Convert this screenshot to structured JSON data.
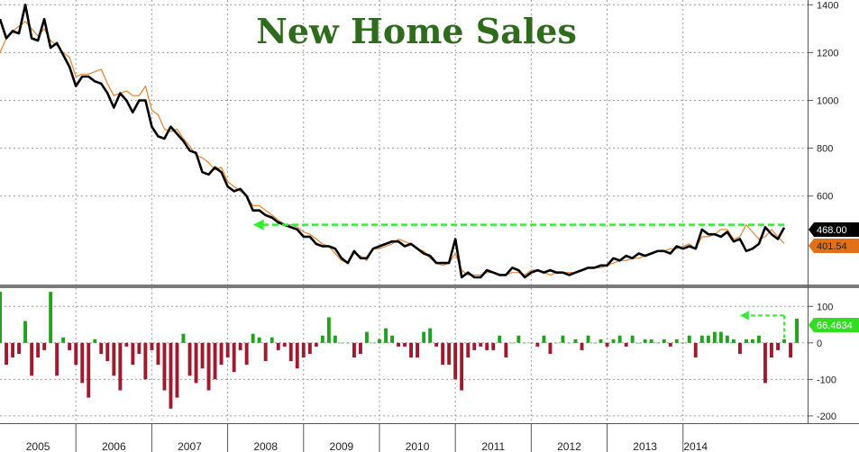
{
  "chart_data": [
    {
      "type": "line",
      "title": "New Home Sales",
      "x_unit": "month",
      "x_start": "2005-01",
      "x_end": "2014-01",
      "ylim": [
        230,
        1420
      ],
      "y_ticks": [
        600,
        800,
        1000,
        1200,
        1400
      ],
      "grid": true,
      "series": [
        {
          "color": "#000000",
          "values": [
            1340,
            1260,
            1290,
            1280,
            1400,
            1260,
            1250,
            1340,
            1220,
            1240,
            1190,
            1140,
            1060,
            1100,
            1100,
            1080,
            1070,
            1030,
            970,
            1030,
            1000,
            950,
            1000,
            1000,
            890,
            850,
            840,
            890,
            860,
            830,
            790,
            780,
            700,
            690,
            720,
            700,
            640,
            620,
            630,
            600,
            540,
            540,
            520,
            510,
            490,
            480,
            470,
            460,
            430,
            430,
            400,
            390,
            390,
            380,
            340,
            320,
            370,
            340,
            340,
            380,
            390,
            400,
            410,
            410,
            390,
            400,
            380,
            360,
            350,
            320,
            320,
            320,
            420,
            260,
            280,
            260,
            260,
            290,
            280,
            270,
            270,
            300,
            290,
            260,
            280,
            290,
            280,
            290,
            280,
            280,
            270,
            280,
            290,
            300,
            300,
            310,
            310,
            340,
            330,
            350,
            340,
            360,
            350,
            360,
            370,
            370,
            360,
            390,
            380,
            390,
            380,
            460,
            440,
            440,
            430,
            450,
            410,
            420,
            370,
            380,
            400,
            470,
            440,
            420,
            468
          ]
        },
        {
          "color": "#e6822a",
          "values": [
            1200,
            1260,
            1290,
            1310,
            1330,
            1300,
            1270,
            1300,
            1250,
            1230,
            1200,
            1180,
            1100,
            1110,
            1110,
            1120,
            1130,
            1070,
            1020,
            1030,
            1040,
            1020,
            1020,
            1060,
            960,
            940,
            880,
            870,
            880,
            840,
            810,
            770,
            760,
            740,
            710,
            720,
            660,
            640,
            620,
            600,
            560,
            560,
            540,
            520,
            500,
            480,
            480,
            470,
            450,
            440,
            420,
            400,
            390,
            360,
            330,
            320,
            360,
            350,
            330,
            380,
            380,
            390,
            400,
            420,
            410,
            400,
            380,
            370,
            340,
            320,
            310,
            320,
            360,
            290,
            270,
            270,
            270,
            280,
            280,
            270,
            270,
            280,
            280,
            270,
            290,
            290,
            280,
            270,
            280,
            280,
            280,
            280,
            290,
            300,
            300,
            300,
            310,
            320,
            330,
            330,
            340,
            340,
            350,
            360,
            370,
            370,
            380,
            380,
            390,
            400,
            380,
            430,
            430,
            440,
            460,
            460,
            420,
            430,
            480,
            450,
            420,
            430,
            460,
            430,
            402
          ]
        }
      ],
      "last_value_label": "468.00",
      "last_value_label_2": "401.54",
      "reference_level": 480
    },
    {
      "type": "bar",
      "x_unit": "month",
      "x_start": "2005-01",
      "x_end": "2014-01",
      "ylim": [
        -220,
        150
      ],
      "y_ticks": [
        -200,
        -100,
        0,
        100
      ],
      "positive_color": "#1fa31f",
      "negative_color": "#9e1b2e",
      "values": [
        140,
        -60,
        -40,
        -30,
        60,
        -90,
        -40,
        -20,
        140,
        -90,
        15,
        -20,
        -60,
        -110,
        -150,
        10,
        -30,
        -50,
        -90,
        -130,
        -10,
        -60,
        -30,
        -100,
        -20,
        -60,
        -130,
        -180,
        -150,
        25,
        -90,
        -110,
        -70,
        -130,
        -100,
        -60,
        -40,
        -80,
        -20,
        -60,
        25,
        15,
        -50,
        15,
        -20,
        -10,
        -50,
        -70,
        -40,
        -30,
        -10,
        20,
        70,
        20,
        0,
        0,
        -40,
        -30,
        30,
        0,
        10,
        40,
        20,
        -10,
        -10,
        -40,
        -40,
        30,
        40,
        -10,
        -60,
        -60,
        -100,
        -130,
        -40,
        -20,
        -10,
        -20,
        -20,
        20,
        -40,
        0,
        20,
        0,
        0,
        -10,
        20,
        -30,
        0,
        20,
        0,
        10,
        -20,
        20,
        0,
        10,
        -10,
        10,
        20,
        -10,
        20,
        0,
        10,
        10,
        0,
        10,
        -10,
        10,
        0,
        20,
        -40,
        20,
        20,
        30,
        30,
        20,
        10,
        -30,
        10,
        10,
        20,
        -110,
        -40,
        -20,
        10,
        -40,
        66.4634
      ],
      "last_value_label": "66.4634",
      "reference_level": 75
    }
  ],
  "x_axis": {
    "years": [
      "2005",
      "2006",
      "2007",
      "2008",
      "2009",
      "2010",
      "2011",
      "2012",
      "2013",
      "2014"
    ]
  },
  "colors": {
    "reference_arrow": "#33ee33",
    "flag_main": "#000000",
    "flag_secondary": "#e0701a",
    "flag_bar": "#33dd22",
    "grid": "#9a9a9a"
  }
}
